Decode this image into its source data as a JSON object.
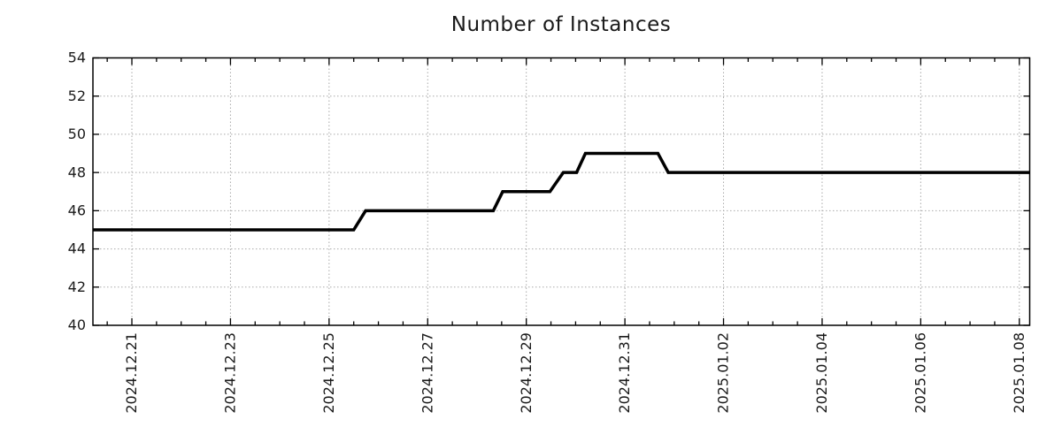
{
  "chart_data": {
    "type": "line",
    "line_style": "step",
    "title": "Number of Instances",
    "xlabel": "",
    "ylabel": "",
    "x_axis": {
      "unit": "days since 2024-12-20 00:00",
      "domain": [
        0.21,
        19.21
      ],
      "major_ticks": [
        1,
        3,
        5,
        7,
        9,
        11,
        13,
        15,
        17,
        19
      ],
      "tick_labels": [
        "2024.12.21",
        "2024.12.23",
        "2024.12.25",
        "2024.12.27",
        "2024.12.29",
        "2024.12.31",
        "2025.01.02",
        "2025.01.04",
        "2025.01.06",
        "2025.01.08"
      ],
      "minor_tick_step": 0.5
    },
    "y_axis": {
      "domain": [
        40,
        54
      ],
      "ticks": [
        40,
        42,
        44,
        46,
        48,
        50,
        52,
        54
      ]
    },
    "grid": {
      "show": true,
      "color": "#a9a9a9",
      "style": "dotted"
    },
    "legend": {
      "show": false
    },
    "series": [
      {
        "name": "instances",
        "color": "#000000",
        "line_width": 3.5,
        "points": [
          [
            0.21,
            45
          ],
          [
            5.5,
            45
          ],
          [
            5.74,
            46
          ],
          [
            8.33,
            46
          ],
          [
            8.52,
            47
          ],
          [
            9.48,
            47
          ],
          [
            9.75,
            48
          ],
          [
            10.02,
            48
          ],
          [
            10.2,
            49
          ],
          [
            11.67,
            49
          ],
          [
            11.88,
            48
          ],
          [
            19.21,
            48
          ]
        ]
      }
    ],
    "value_summary": {
      "start_value": 45,
      "end_value": 48,
      "max_value": 49,
      "min_value": 45
    },
    "colors": {
      "axis": "#000000",
      "tick_text": "#1a1a1a",
      "background": "#ffffff"
    }
  }
}
